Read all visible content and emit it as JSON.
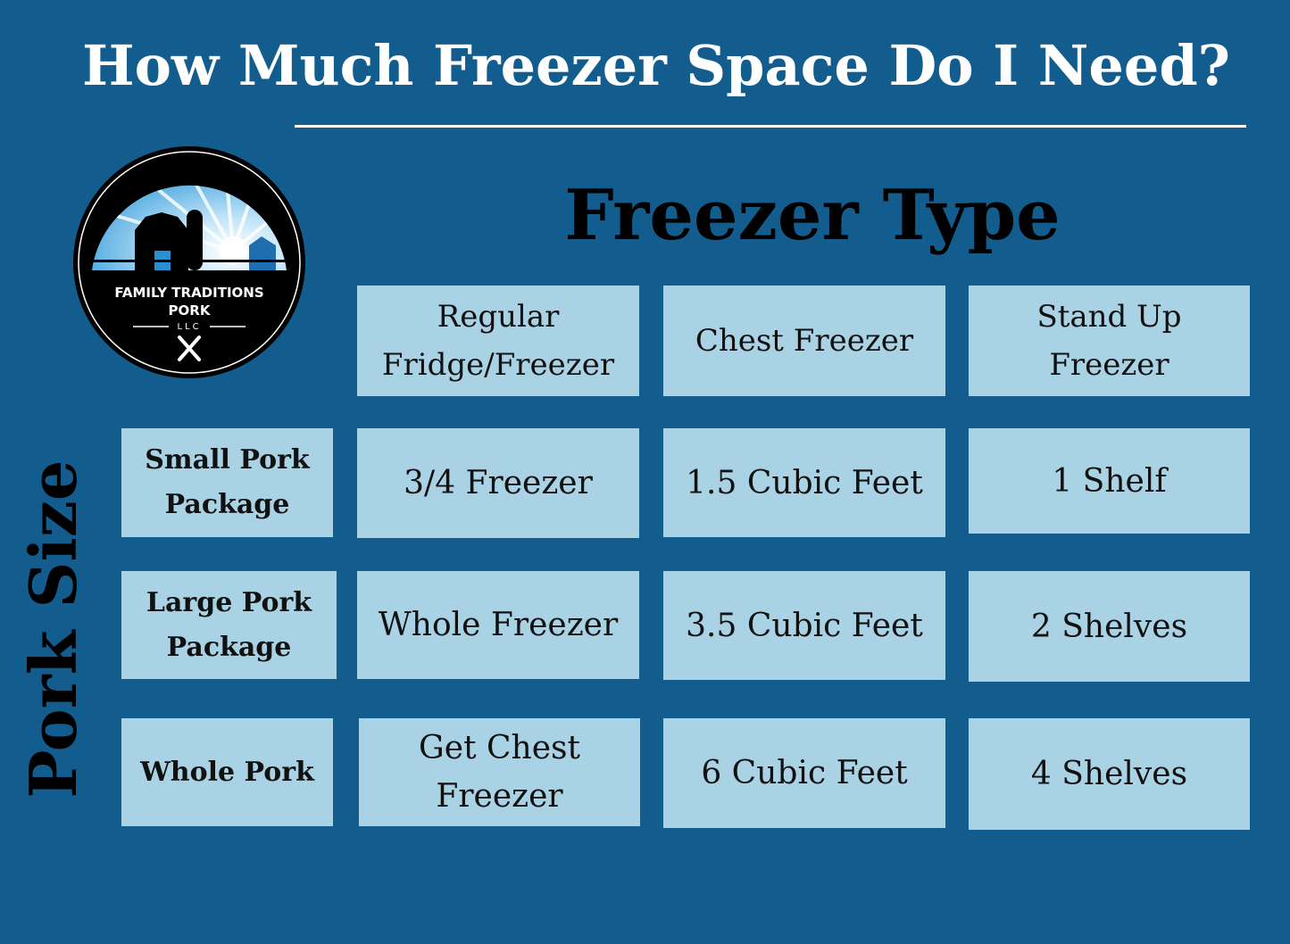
{
  "title": "How Much Freezer Space Do I Need?",
  "column_group_label": "Freezer Type",
  "row_group_label": "Pork Size",
  "logo": {
    "line1": "FAMILY TRADITIONS",
    "line2": "PORK",
    "line3": "LLC"
  },
  "colors": {
    "background": "#135d8e",
    "cell": "#a9d3e5",
    "title": "#ffffff"
  },
  "columns": [
    "Regular Fridge/Freezer",
    "Chest Freezer",
    "Stand Up Freezer"
  ],
  "rows": [
    {
      "label": "Small Pork Package",
      "values": [
        "3/4 Freezer",
        "1.5 Cubic Feet",
        "1 Shelf"
      ]
    },
    {
      "label": "Large Pork Package",
      "values": [
        "Whole Freezer",
        "3.5 Cubic Feet",
        "2 Shelves"
      ]
    },
    {
      "label": "Whole Pork",
      "values": [
        "Get Chest Freezer",
        "6 Cubic Feet",
        "4 Shelves"
      ]
    }
  ]
}
